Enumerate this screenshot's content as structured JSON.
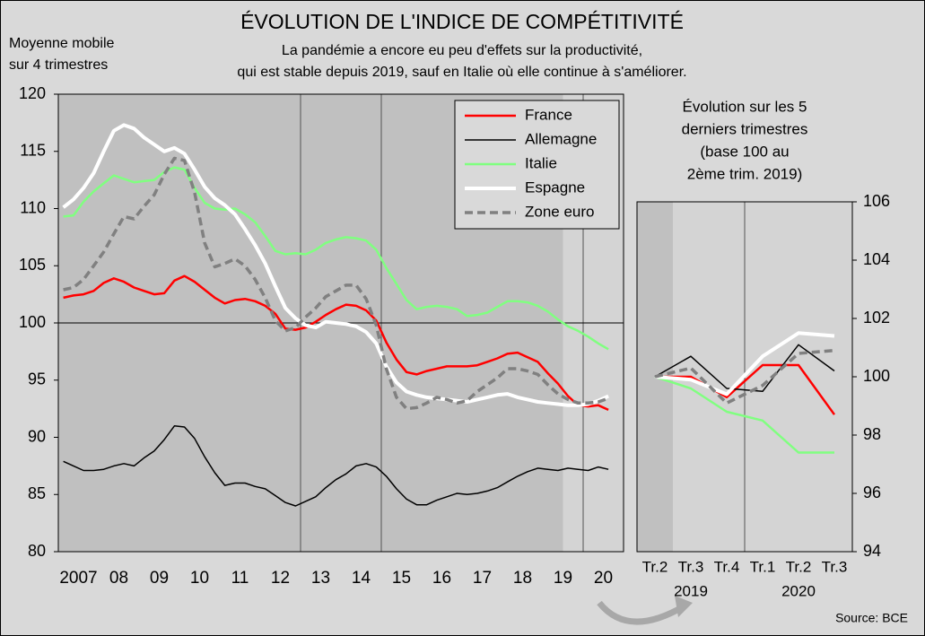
{
  "chart_data": [
    {
      "type": "line",
      "title": "ÉVOLUTION DE L'INDICE DE COMPÉTITIVITÉ",
      "subtitle": [
        "La pandémie a encore eu peu d'effets sur la productivité,",
        "qui est stable depuis 2019, sauf en Italie où elle continue à s'améliorer."
      ],
      "ylabel": [
        "Moyenne mobile",
        "sur 4 trimestres"
      ],
      "x": [
        2007.125,
        2007.375,
        2007.625,
        2007.875,
        2008.125,
        2008.375,
        2008.625,
        2008.875,
        2009.125,
        2009.375,
        2009.625,
        2009.875,
        2010.125,
        2010.375,
        2010.625,
        2010.875,
        2011.125,
        2011.375,
        2011.625,
        2011.875,
        2012.125,
        2012.375,
        2012.625,
        2012.875,
        2013.125,
        2013.375,
        2013.625,
        2013.875,
        2014.125,
        2014.375,
        2014.625,
        2014.875,
        2015.125,
        2015.375,
        2015.625,
        2015.875,
        2016.125,
        2016.375,
        2016.625,
        2016.875,
        2017.125,
        2017.375,
        2017.625,
        2017.875,
        2018.125,
        2018.375,
        2018.625,
        2018.875,
        2019.125,
        2019.375,
        2019.625,
        2019.875,
        2020.125,
        2020.375,
        2020.625
      ],
      "series": [
        {
          "name": "France",
          "color": "#ff0000",
          "width": 2.5,
          "dash": false,
          "values": [
            102.2,
            102.4,
            102.5,
            102.8,
            103.5,
            103.9,
            103.6,
            103.1,
            102.8,
            102.5,
            102.6,
            103.7,
            104.1,
            103.6,
            102.9,
            102.2,
            101.7,
            102.0,
            102.1,
            101.9,
            101.5,
            100.8,
            99.5,
            99.4,
            99.6,
            100.1,
            100.7,
            101.2,
            101.6,
            101.5,
            101.1,
            100.2,
            98.3,
            96.8,
            95.7,
            95.5,
            95.8,
            96.0,
            96.2,
            96.2,
            96.2,
            96.3,
            96.6,
            96.9,
            97.3,
            97.4,
            97.0,
            96.6,
            95.6,
            94.7,
            93.6,
            92.8,
            92.7,
            92.8,
            92.4
          ]
        },
        {
          "name": "Allemagne",
          "color": "#000000",
          "width": 1.5,
          "dash": false,
          "values": [
            87.9,
            87.5,
            87.1,
            87.1,
            87.2,
            87.5,
            87.7,
            87.5,
            88.2,
            88.8,
            89.8,
            91.0,
            90.9,
            89.9,
            88.3,
            86.9,
            85.8,
            86.0,
            86.0,
            85.7,
            85.5,
            84.9,
            84.3,
            84.0,
            84.4,
            84.8,
            85.6,
            86.3,
            86.8,
            87.5,
            87.7,
            87.4,
            86.6,
            85.5,
            84.6,
            84.1,
            84.1,
            84.5,
            84.8,
            85.1,
            85.0,
            85.1,
            85.3,
            85.6,
            86.1,
            86.6,
            87.0,
            87.3,
            87.2,
            87.1,
            87.3,
            87.2,
            87.1,
            87.4,
            87.2
          ]
        },
        {
          "name": "Italie",
          "color": "#80ff80",
          "width": 2.5,
          "dash": false,
          "values": [
            109.3,
            109.4,
            110.6,
            111.5,
            112.2,
            112.9,
            112.6,
            112.3,
            112.4,
            112.5,
            113.2,
            113.6,
            113.4,
            111.8,
            110.5,
            110.0,
            109.9,
            110.0,
            109.5,
            108.8,
            107.6,
            106.3,
            106.0,
            106.1,
            106.0,
            106.4,
            107.0,
            107.3,
            107.5,
            107.4,
            107.2,
            106.4,
            104.8,
            103.4,
            102.0,
            101.2,
            101.4,
            101.5,
            101.4,
            101.2,
            100.6,
            100.7,
            100.9,
            101.4,
            101.9,
            101.9,
            101.8,
            101.5,
            101.0,
            100.3,
            99.7,
            99.3,
            98.8,
            98.2,
            97.7
          ]
        },
        {
          "name": "Espagne",
          "color": "#ffffff",
          "width": 4,
          "dash": false,
          "values": [
            110.1,
            110.8,
            111.8,
            113.1,
            115.0,
            116.8,
            117.3,
            117.0,
            116.2,
            115.6,
            115.0,
            115.3,
            114.8,
            113.4,
            111.9,
            110.9,
            110.3,
            109.5,
            108.2,
            106.8,
            105.2,
            103.2,
            101.3,
            100.4,
            99.8,
            99.6,
            100.1,
            100.0,
            99.9,
            99.7,
            99.2,
            98.2,
            96.2,
            94.8,
            94.0,
            93.7,
            93.5,
            93.4,
            93.3,
            93.2,
            93.1,
            93.3,
            93.5,
            93.7,
            93.8,
            93.5,
            93.3,
            93.1,
            93.0,
            92.9,
            92.8,
            92.8,
            92.9,
            93.2,
            93.6
          ]
        },
        {
          "name": "Zone euro",
          "color": "#808080",
          "width": 3.5,
          "dash": true,
          "values": [
            102.9,
            103.1,
            103.8,
            105.0,
            106.2,
            107.8,
            109.3,
            109.1,
            110.2,
            111.2,
            113.0,
            114.4,
            114.2,
            111.4,
            107.0,
            104.9,
            105.2,
            105.6,
            105.0,
            103.8,
            102.2,
            100.2,
            99.3,
            99.6,
            100.5,
            101.3,
            102.3,
            102.8,
            103.3,
            103.3,
            102.1,
            99.8,
            96.0,
            93.5,
            92.5,
            92.6,
            93.0,
            93.5,
            93.3,
            93.0,
            93.2,
            94.0,
            94.6,
            95.2,
            96.0,
            96.0,
            95.8,
            95.5,
            94.6,
            93.8,
            93.3,
            93.0,
            93.0,
            93.1,
            93.4
          ]
        }
      ],
      "xlim": [
        2007,
        2021
      ],
      "xticks": [
        {
          "value": 2007.5,
          "label": "2007"
        },
        {
          "value": 2008.5,
          "label": "08"
        },
        {
          "value": 2009.5,
          "label": "09"
        },
        {
          "value": 2010.5,
          "label": "10"
        },
        {
          "value": 2011.5,
          "label": "11"
        },
        {
          "value": 2012.5,
          "label": "12"
        },
        {
          "value": 2013.5,
          "label": "13"
        },
        {
          "value": 2014.5,
          "label": "14"
        },
        {
          "value": 2015.5,
          "label": "15"
        },
        {
          "value": 2016.5,
          "label": "16"
        },
        {
          "value": 2017.5,
          "label": "17"
        },
        {
          "value": 2018.5,
          "label": "18"
        },
        {
          "value": 2019.5,
          "label": "19"
        },
        {
          "value": 2020.5,
          "label": "20"
        }
      ],
      "ylim": [
        80,
        120
      ],
      "yticks": [
        80,
        85,
        90,
        95,
        100,
        105,
        110,
        115,
        120
      ],
      "hline": 100,
      "vlines": [
        2013,
        2015,
        2020
      ],
      "shade": [
        2019.5,
        2021
      ],
      "legend": "upper right"
    },
    {
      "type": "line",
      "title": [
        "Évolution sur les 5",
        "derniers trimestres",
        "(base 100 au",
        "2ème trim. 2019)"
      ],
      "categories": [
        "Tr.2",
        "Tr.3",
        "Tr.4",
        "Tr.1",
        "Tr.2",
        "Tr.3"
      ],
      "groups": [
        "2019",
        "2019",
        "2019",
        "2020",
        "2020",
        "2020"
      ],
      "series": [
        {
          "name": "France",
          "color": "#ff0000",
          "width": 2.5,
          "dash": false,
          "values": [
            100,
            100,
            99.3,
            100.4,
            100.4,
            98.7
          ]
        },
        {
          "name": "Allemagne",
          "color": "#000000",
          "width": 1.5,
          "dash": false,
          "values": [
            100,
            100.7,
            99.6,
            99.5,
            101.1,
            100.2
          ]
        },
        {
          "name": "Italie",
          "color": "#80ff80",
          "width": 2.5,
          "dash": false,
          "values": [
            100,
            99.6,
            98.8,
            98.5,
            97.4,
            97.4
          ]
        },
        {
          "name": "Espagne",
          "color": "#ffffff",
          "width": 4,
          "dash": false,
          "values": [
            100,
            99.9,
            99.4,
            100.7,
            101.5,
            101.4
          ]
        },
        {
          "name": "Zone euro",
          "color": "#808080",
          "width": 3.5,
          "dash": true,
          "values": [
            100,
            100.3,
            99.1,
            99.7,
            100.8,
            100.9
          ]
        }
      ],
      "ylim": [
        94,
        106
      ],
      "yticks": [
        94,
        96,
        98,
        100,
        102,
        104,
        106
      ],
      "yaxis": "right"
    }
  ],
  "source": "Source: BCE"
}
